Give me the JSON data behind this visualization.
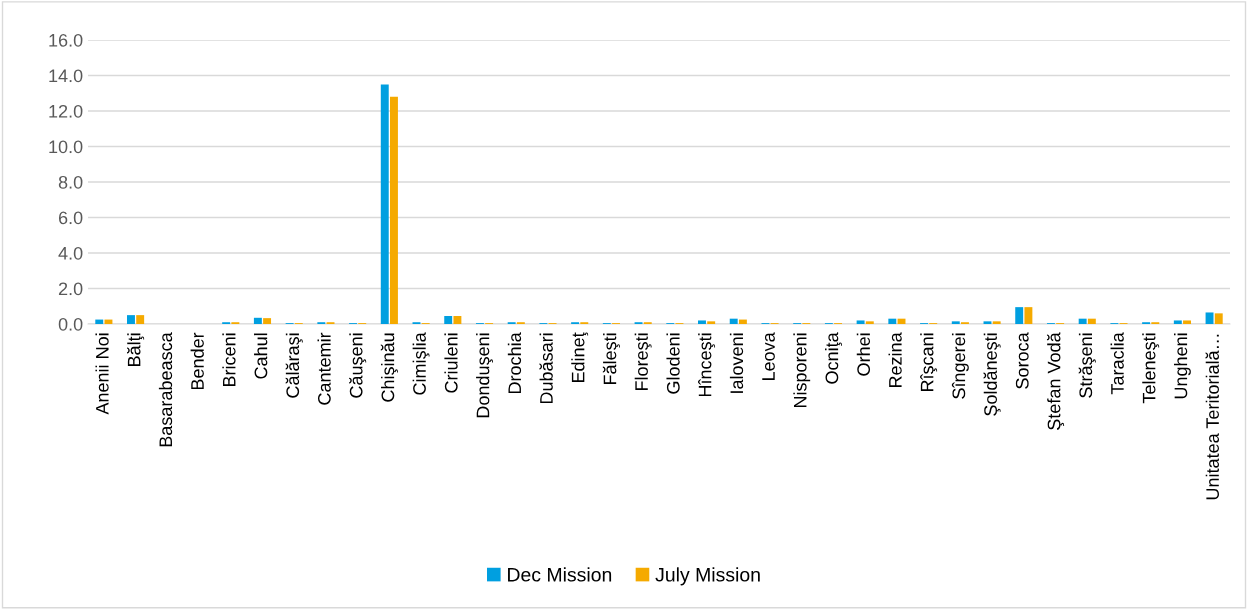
{
  "chart_data": {
    "type": "bar",
    "categories": [
      "Anenii Noi",
      "Bălţi",
      "Basarabeasca",
      "Bender",
      "Briceni",
      "Cahul",
      "Călăraşi",
      "Cantemir",
      "Căuşeni",
      "Chişinău",
      "Cimişlia",
      "Criuleni",
      "Donduşeni",
      "Drochia",
      "Dubăsari",
      "Edineţ",
      "Făleşti",
      "Floreşti",
      "Glodeni",
      "Hînceşti",
      "Ialoveni",
      "Leova",
      "Nisporeni",
      "Ocniţa",
      "Orhei",
      "Rezina",
      "Rîşcani",
      "Sîngerei",
      "Şoldăneşti",
      "Soroca",
      "Ştefan Vodă",
      "Străşeni",
      "Taraclia",
      "Teleneşti",
      "Ungheni",
      "Unitatea Teritorială…"
    ],
    "series": [
      {
        "name": "Dec Mission",
        "color": "#009fe0",
        "values": [
          0.25,
          0.5,
          0,
          0,
          0.1,
          0.35,
          0.05,
          0.1,
          0.05,
          13.5,
          0.1,
          0.45,
          0.05,
          0.1,
          0.05,
          0.1,
          0.05,
          0.1,
          0.05,
          0.2,
          0.3,
          0.05,
          0.05,
          0.05,
          0.2,
          0.3,
          0.05,
          0.15,
          0.15,
          0.95,
          0.05,
          0.3,
          0.05,
          0.1,
          0.2,
          0.65
        ]
      },
      {
        "name": "July Mission",
        "color": "#f5aa00",
        "values": [
          0.25,
          0.5,
          0,
          0,
          0.1,
          0.33,
          0.05,
          0.1,
          0.05,
          12.8,
          0.05,
          0.45,
          0.05,
          0.1,
          0.05,
          0.1,
          0.05,
          0.1,
          0.05,
          0.15,
          0.25,
          0.05,
          0.05,
          0.05,
          0.15,
          0.3,
          0.05,
          0.1,
          0.15,
          0.95,
          0.05,
          0.3,
          0.05,
          0.1,
          0.2,
          0.6
        ]
      }
    ],
    "ylim": [
      0,
      16
    ],
    "yticks": [
      {
        "value": 0,
        "label": "0.0"
      },
      {
        "value": 2,
        "label": "2.0"
      },
      {
        "value": 4,
        "label": "4.0"
      },
      {
        "value": 6,
        "label": "6.0"
      },
      {
        "value": 8,
        "label": "8.0"
      },
      {
        "value": 10,
        "label": "10.0"
      },
      {
        "value": 12,
        "label": "12.0"
      },
      {
        "value": 14,
        "label": "14.0"
      },
      {
        "value": 16,
        "label": "16.0"
      }
    ],
    "grid": "y",
    "legend": "bottom"
  }
}
